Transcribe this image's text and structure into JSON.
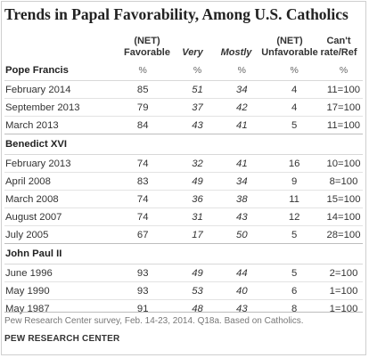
{
  "chart_data": {
    "type": "table",
    "title": "Trends in Papal Favorability, Among U.S. Catholics",
    "columns": [
      {
        "key": "fav",
        "line1": "(NET)",
        "line2": "Favorable",
        "italic": false,
        "unit": "%"
      },
      {
        "key": "very",
        "line1": "",
        "line2": "Very",
        "italic": true,
        "unit": "%"
      },
      {
        "key": "mostly",
        "line1": "",
        "line2": "Mostly",
        "italic": true,
        "unit": "%"
      },
      {
        "key": "unfav",
        "line1": "(NET)",
        "line2": "Unfavorable",
        "italic": false,
        "unit": "%"
      },
      {
        "key": "cant",
        "line1": "Can't",
        "line2": "rate/Ref",
        "italic": false,
        "unit": "%"
      }
    ],
    "groups": [
      {
        "name": "Pope Francis",
        "rows": [
          {
            "label": "February 2014",
            "values": [
              "85",
              "51",
              "34",
              "4",
              "11=100"
            ]
          },
          {
            "label": "September 2013",
            "values": [
              "79",
              "37",
              "42",
              "4",
              "17=100"
            ]
          },
          {
            "label": "March 2013",
            "values": [
              "84",
              "43",
              "41",
              "5",
              "11=100"
            ]
          }
        ]
      },
      {
        "name": "Benedict XVI",
        "rows": [
          {
            "label": "February 2013",
            "values": [
              "74",
              "32",
              "41",
              "16",
              "10=100"
            ]
          },
          {
            "label": "April 2008",
            "values": [
              "83",
              "49",
              "34",
              "9",
              "8=100"
            ]
          },
          {
            "label": "March 2008",
            "values": [
              "74",
              "36",
              "38",
              "11",
              "15=100"
            ]
          },
          {
            "label": "August 2007",
            "values": [
              "74",
              "31",
              "43",
              "12",
              "14=100"
            ]
          },
          {
            "label": "July 2005",
            "values": [
              "67",
              "17",
              "50",
              "5",
              "28=100"
            ]
          }
        ]
      },
      {
        "name": "John Paul II",
        "rows": [
          {
            "label": "June 1996",
            "values": [
              "93",
              "49",
              "44",
              "5",
              "2=100"
            ]
          },
          {
            "label": "May 1990",
            "values": [
              "93",
              "53",
              "40",
              "6",
              "1=100"
            ]
          },
          {
            "label": "May 1987",
            "values": [
              "91",
              "48",
              "43",
              "8",
              "1=100"
            ]
          }
        ]
      }
    ],
    "source_note": "Pew Research Center survey, Feb. 14-23, 2014. Q18a. Based on Catholics.",
    "organization": "PEW RESEARCH CENTER"
  }
}
